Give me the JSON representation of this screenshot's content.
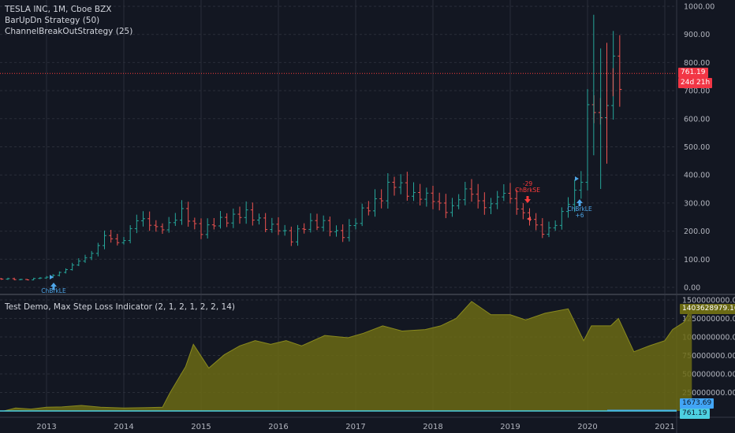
{
  "legend": {
    "symbol": "TESLA INC, 1M, Cboe BZX",
    "strategy1": "BarUpDn Strategy (50)",
    "strategy2": "ChannelBreakOutStrategy (25)",
    "indicator": "Test Demo, Max Step Loss Indicator (2, 1, 2, 1, 2, 2, 14)"
  },
  "tags": {
    "price_last": "761.19",
    "countdown": "24d 21h",
    "indicator_last": "1403628979.16",
    "blue_value": "1673.69",
    "teal_value": "761.19"
  },
  "colors": {
    "background": "#131722",
    "grid": "#2a2e39",
    "up": "#26a69a",
    "down": "#ef5350",
    "signal_long": "#4fa6e8",
    "area_fill": "#6b6a14",
    "area_line": "#8a8a1e",
    "price_line": "#ff3b3b"
  },
  "signals": [
    {
      "label": "ChBrkLE",
      "type": "long"
    },
    {
      "label": "-29",
      "type": "short"
    },
    {
      "label": "ChBrkSE",
      "type": "short"
    },
    {
      "label": "ChBrkLE",
      "type": "long"
    },
    {
      "label": "+6",
      "type": "long"
    }
  ],
  "chart_data": [
    {
      "type": "ohlc",
      "title": "TESLA INC, 1M, Cboe BZX",
      "x_tick_labels": [
        "2013",
        "2014",
        "2015",
        "2016",
        "2017",
        "2018",
        "2019",
        "2020",
        "2021"
      ],
      "y_tick_labels": [
        "0.00",
        "100.00",
        "200.00",
        "300.00",
        "400.00",
        "500.00",
        "600.00",
        "700.00",
        "800.00",
        "900.00",
        "1000.00"
      ],
      "ylim": [
        -20,
        1010
      ],
      "last_price": 761.19,
      "close_series": [
        {
          "x": 2012.25,
          "close": 30
        },
        {
          "x": 2012.75,
          "close": 28
        },
        {
          "x": 2013.0,
          "close": 35
        },
        {
          "x": 2013.3,
          "close": 70
        },
        {
          "x": 2013.55,
          "close": 115
        },
        {
          "x": 2013.75,
          "close": 180
        },
        {
          "x": 2013.95,
          "close": 150
        },
        {
          "x": 2014.15,
          "close": 245
        },
        {
          "x": 2014.4,
          "close": 210
        },
        {
          "x": 2014.6,
          "close": 230
        },
        {
          "x": 2014.75,
          "close": 260
        },
        {
          "x": 2015.0,
          "close": 205
        },
        {
          "x": 2015.25,
          "close": 230
        },
        {
          "x": 2015.5,
          "close": 270
        },
        {
          "x": 2015.75,
          "close": 230
        },
        {
          "x": 2016.0,
          "close": 215
        },
        {
          "x": 2016.15,
          "close": 160
        },
        {
          "x": 2016.35,
          "close": 235
        },
        {
          "x": 2016.6,
          "close": 215
        },
        {
          "x": 2016.8,
          "close": 190
        },
        {
          "x": 2016.95,
          "close": 215
        },
        {
          "x": 2017.2,
          "close": 300
        },
        {
          "x": 2017.45,
          "close": 360
        },
        {
          "x": 2017.7,
          "close": 345
        },
        {
          "x": 2017.95,
          "close": 310
        },
        {
          "x": 2018.2,
          "close": 280
        },
        {
          "x": 2018.45,
          "close": 340
        },
        {
          "x": 2018.7,
          "close": 290
        },
        {
          "x": 2018.95,
          "close": 330
        },
        {
          "x": 2019.2,
          "close": 260
        },
        {
          "x": 2019.4,
          "close": 185
        },
        {
          "x": 2019.6,
          "close": 240
        },
        {
          "x": 2019.85,
          "close": 330
        },
        {
          "x": 2019.95,
          "close": 420
        },
        {
          "x": 2020.0,
          "close": 650
        },
        {
          "x": 2020.1,
          "close": 670
        },
        {
          "x": 2020.2,
          "close": 520
        },
        {
          "x": 2020.3,
          "close": 780
        },
        {
          "x": 2020.4,
          "close": 761.19
        }
      ]
    },
    {
      "type": "area",
      "title": "Test Demo, Max Step Loss Indicator (2, 1, 2, 1, 2, 2, 14)",
      "y_tick_labels": [
        "250000000.00",
        "500000000.00",
        "750000000.00",
        "1000000000.00",
        "1250000000.00",
        "1500000000.00"
      ],
      "ylim": [
        0,
        1500000000
      ],
      "last_value": 1403628979.16,
      "series": [
        {
          "x": 2012.45,
          "y": 0
        },
        {
          "x": 2012.6,
          "y": 40000000
        },
        {
          "x": 2012.8,
          "y": 25000000
        },
        {
          "x": 2013.0,
          "y": 50000000
        },
        {
          "x": 2013.2,
          "y": 55000000
        },
        {
          "x": 2013.45,
          "y": 75000000
        },
        {
          "x": 2013.7,
          "y": 50000000
        },
        {
          "x": 2014.0,
          "y": 40000000
        },
        {
          "x": 2014.3,
          "y": 45000000
        },
        {
          "x": 2014.5,
          "y": 50000000
        },
        {
          "x": 2014.6,
          "y": 250000000
        },
        {
          "x": 2014.8,
          "y": 600000000
        },
        {
          "x": 2014.9,
          "y": 900000000
        },
        {
          "x": 2015.1,
          "y": 580000000
        },
        {
          "x": 2015.3,
          "y": 760000000
        },
        {
          "x": 2015.5,
          "y": 880000000
        },
        {
          "x": 2015.7,
          "y": 950000000
        },
        {
          "x": 2015.9,
          "y": 900000000
        },
        {
          "x": 2016.1,
          "y": 950000000
        },
        {
          "x": 2016.3,
          "y": 880000000
        },
        {
          "x": 2016.6,
          "y": 1020000000
        },
        {
          "x": 2016.9,
          "y": 990000000
        },
        {
          "x": 2017.1,
          "y": 1050000000
        },
        {
          "x": 2017.35,
          "y": 1150000000
        },
        {
          "x": 2017.6,
          "y": 1080000000
        },
        {
          "x": 2017.9,
          "y": 1100000000
        },
        {
          "x": 2018.1,
          "y": 1150000000
        },
        {
          "x": 2018.3,
          "y": 1250000000
        },
        {
          "x": 2018.5,
          "y": 1480000000
        },
        {
          "x": 2018.75,
          "y": 1300000000
        },
        {
          "x": 2019.0,
          "y": 1300000000
        },
        {
          "x": 2019.2,
          "y": 1230000000
        },
        {
          "x": 2019.45,
          "y": 1320000000
        },
        {
          "x": 2019.75,
          "y": 1380000000
        },
        {
          "x": 2019.95,
          "y": 950000000
        },
        {
          "x": 2020.05,
          "y": 1150000000
        },
        {
          "x": 2020.3,
          "y": 1150000000
        },
        {
          "x": 2020.4,
          "y": 1250000000
        },
        {
          "x": 2020.6,
          "y": 800000000
        },
        {
          "x": 2020.8,
          "y": 880000000
        },
        {
          "x": 2021.0,
          "y": 950000000
        },
        {
          "x": 2021.1,
          "y": 1100000000
        },
        {
          "x": 2021.25,
          "y": 1200000000
        },
        {
          "x": 2021.35,
          "y": 1403628979.16
        }
      ]
    }
  ]
}
